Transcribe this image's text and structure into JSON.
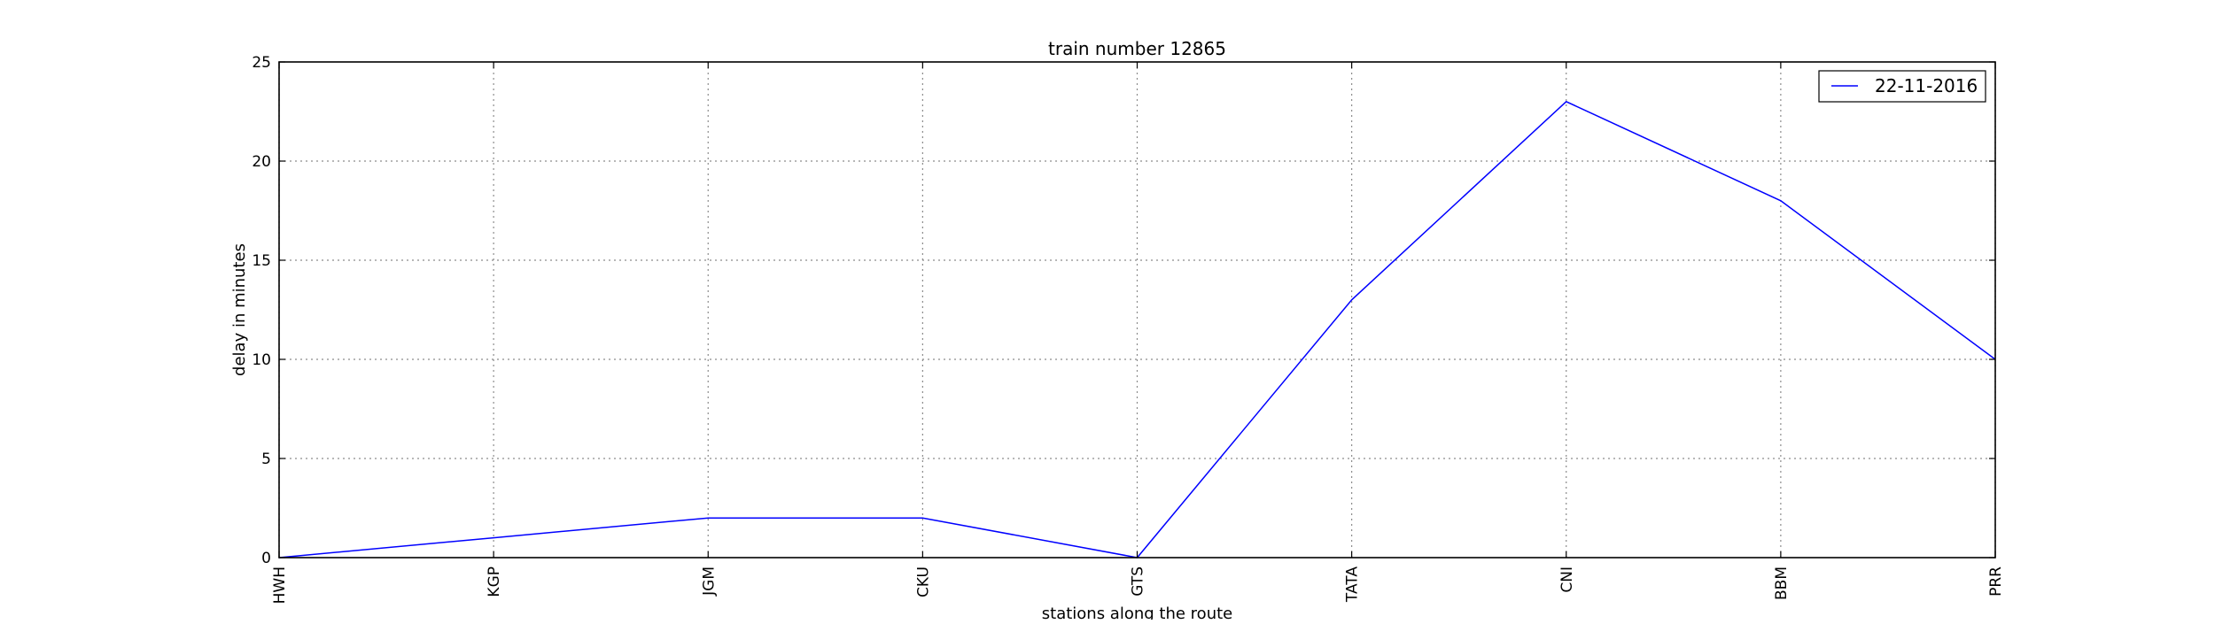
{
  "chart_data": {
    "type": "line",
    "title": "train number 12865",
    "xlabel": "stations along the route",
    "ylabel": "delay in minutes",
    "categories": [
      "HWH",
      "KGP",
      "JGM",
      "CKU",
      "GTS",
      "TATA",
      "CNI",
      "BBM",
      "PRR"
    ],
    "series": [
      {
        "name": "22-11-2016",
        "color": "#0000ff",
        "values": [
          0,
          1,
          2,
          2,
          0,
          13,
          23,
          18,
          10
        ]
      }
    ],
    "ylim": [
      0,
      25
    ],
    "yticks": [
      0,
      5,
      10,
      15,
      20,
      25
    ],
    "grid": true,
    "legend_position": "top-right"
  }
}
